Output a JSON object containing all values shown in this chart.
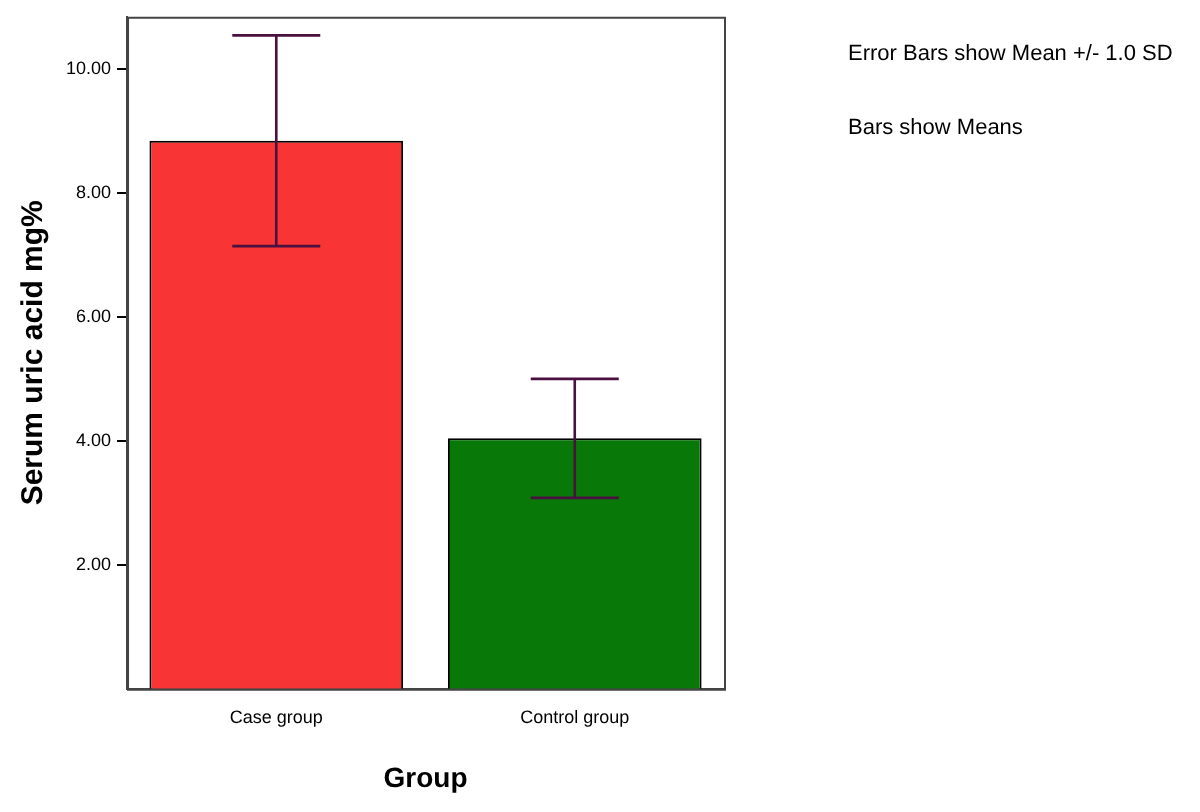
{
  "chart_data": {
    "type": "bar",
    "xlabel": "Group",
    "ylabel": "Serum uric acid mg%",
    "categories": [
      "Case group",
      "Control group"
    ],
    "values": [
      8.84,
      4.04
    ],
    "colors": [
      "#f83434",
      "#087808"
    ],
    "errors": [
      1.7,
      0.96
    ],
    "ylim": [
      0,
      10.84
    ],
    "yticks": [
      {
        "value": 2,
        "label": "2.00"
      },
      {
        "value": 4,
        "label": "4.00"
      },
      {
        "value": 6,
        "label": "6.00"
      },
      {
        "value": 8,
        "label": "8.00"
      },
      {
        "value": 10,
        "label": "10.00"
      }
    ],
    "grid": false,
    "legend": false,
    "annotations": [
      "Error Bars show Mean +/- 1.0 SD",
      "Bars show Means"
    ]
  }
}
